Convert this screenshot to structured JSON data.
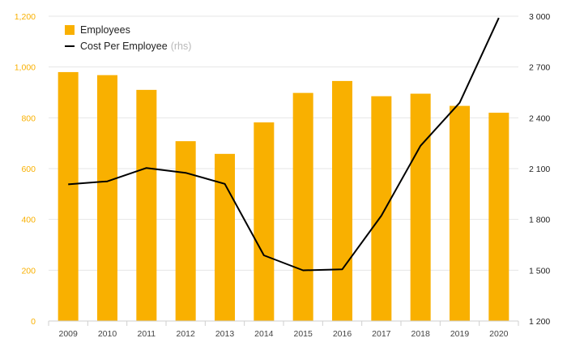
{
  "chart_data": {
    "type": "bar+line",
    "categories": [
      "2009",
      "2010",
      "2011",
      "2012",
      "2013",
      "2014",
      "2015",
      "2016",
      "2017",
      "2018",
      "2019",
      "2020"
    ],
    "series": [
      {
        "name": "Employees",
        "type": "bar",
        "axis": "left",
        "color": "#F9B000",
        "values": [
          980,
          968,
          910,
          708,
          658,
          782,
          898,
          945,
          885,
          895,
          847,
          820
        ]
      },
      {
        "name": "Cost Per Employee",
        "type": "line",
        "axis": "right",
        "color": "#000000",
        "values": [
          2007,
          2025,
          2104,
          2075,
          2010,
          1588,
          1499,
          1505,
          1822,
          2235,
          2489,
          2990
        ]
      }
    ],
    "y_left": {
      "ylim": [
        0,
        1200
      ],
      "ticks": [
        "0",
        "200",
        "400",
        "600",
        "800",
        "1,000",
        "1,200"
      ],
      "color": "#F9B000"
    },
    "y_right": {
      "ylim": [
        1200,
        3000
      ],
      "ticks": [
        "1 200",
        "1 500",
        "1 800",
        "2 100",
        "2 400",
        "2 700",
        "3 000"
      ]
    },
    "grid": true,
    "legend_position": "top-left",
    "legend": {
      "bar_label": "Employees",
      "line_label": "Cost Per Employee",
      "line_note": "(rhs)"
    }
  }
}
